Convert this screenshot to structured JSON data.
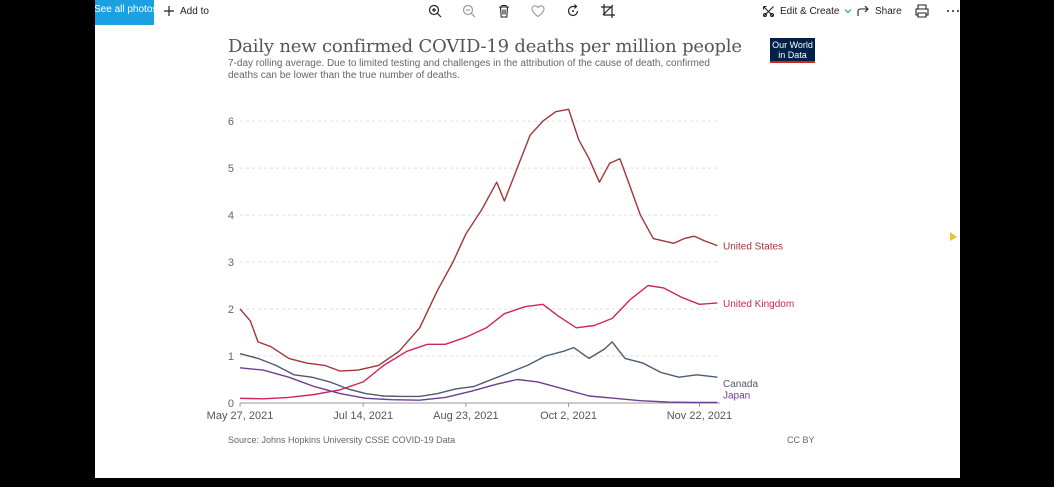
{
  "toolbar": {
    "see_all_label": "See all photos",
    "add_to_label": "Add to",
    "edit_create_label": "Edit & Create",
    "share_label": "Share",
    "icons": [
      "zoom-in-icon",
      "zoom-out-icon",
      "delete-icon",
      "heart-icon",
      "rotate-icon",
      "crop-icon",
      "print-icon",
      "more-icon"
    ]
  },
  "chart": {
    "title": "Daily new confirmed COVID-19 deaths per million people",
    "subtitle": "7-day rolling average. Due to limited testing and challenges in the attribution of the cause of death, confirmed deaths can be lower than the true number of deaths.",
    "logo_line1": "Our World",
    "logo_line2": "in Data",
    "source": "Source: Johns Hopkins University CSSE COVID-19 Data",
    "license": "CC BY"
  },
  "colors": {
    "accent": "#1ba1e2",
    "united_states": "#a2353a",
    "united_kingdom": "#d1245e",
    "canada": "#4c5a73",
    "japan": "#6d3e91"
  },
  "chart_data": {
    "type": "line",
    "x_axis": "date",
    "xlim": [
      "2021-05-27",
      "2021-11-30"
    ],
    "ylim": [
      0,
      6.3
    ],
    "yticks": [
      0,
      1,
      2,
      3,
      4,
      5,
      6
    ],
    "xticks": [
      "May 27, 2021",
      "Jul 14, 2021",
      "Aug 23, 2021",
      "Oct 2, 2021",
      "Nov 22, 2021"
    ],
    "xtick_dates": [
      "2021-05-27",
      "2021-07-14",
      "2021-08-23",
      "2021-10-02",
      "2021-11-22"
    ],
    "grid": "horizontal dashed",
    "legend": "inline labels at line ends",
    "series": [
      {
        "name": "United States",
        "color": "#a2353a",
        "points": [
          [
            "2021-05-27",
            2.0
          ],
          [
            "2021-05-31",
            1.75
          ],
          [
            "2021-06-03",
            1.3
          ],
          [
            "2021-06-08",
            1.2
          ],
          [
            "2021-06-15",
            0.95
          ],
          [
            "2021-06-22",
            0.85
          ],
          [
            "2021-06-29",
            0.8
          ],
          [
            "2021-07-05",
            0.68
          ],
          [
            "2021-07-12",
            0.7
          ],
          [
            "2021-07-20",
            0.8
          ],
          [
            "2021-07-28",
            1.1
          ],
          [
            "2021-08-05",
            1.6
          ],
          [
            "2021-08-12",
            2.4
          ],
          [
            "2021-08-18",
            3.0
          ],
          [
            "2021-08-23",
            3.6
          ],
          [
            "2021-08-29",
            4.1
          ],
          [
            "2021-09-04",
            4.7
          ],
          [
            "2021-09-07",
            4.3
          ],
          [
            "2021-09-12",
            5.0
          ],
          [
            "2021-09-17",
            5.7
          ],
          [
            "2021-09-22",
            6.0
          ],
          [
            "2021-09-27",
            6.2
          ],
          [
            "2021-10-02",
            6.25
          ],
          [
            "2021-10-06",
            5.6
          ],
          [
            "2021-10-10",
            5.2
          ],
          [
            "2021-10-14",
            4.7
          ],
          [
            "2021-10-18",
            5.1
          ],
          [
            "2021-10-22",
            5.2
          ],
          [
            "2021-10-26",
            4.6
          ],
          [
            "2021-10-30",
            4.0
          ],
          [
            "2021-11-04",
            3.5
          ],
          [
            "2021-11-08",
            3.45
          ],
          [
            "2021-11-12",
            3.4
          ],
          [
            "2021-11-16",
            3.5
          ],
          [
            "2021-11-20",
            3.55
          ],
          [
            "2021-11-24",
            3.45
          ],
          [
            "2021-11-29",
            3.35
          ]
        ]
      },
      {
        "name": "United Kingdom",
        "color": "#d1245e",
        "points": [
          [
            "2021-05-27",
            0.1
          ],
          [
            "2021-06-05",
            0.09
          ],
          [
            "2021-06-15",
            0.12
          ],
          [
            "2021-06-25",
            0.18
          ],
          [
            "2021-07-05",
            0.28
          ],
          [
            "2021-07-14",
            0.45
          ],
          [
            "2021-07-22",
            0.8
          ],
          [
            "2021-07-31",
            1.1
          ],
          [
            "2021-08-08",
            1.25
          ],
          [
            "2021-08-15",
            1.25
          ],
          [
            "2021-08-23",
            1.4
          ],
          [
            "2021-08-31",
            1.6
          ],
          [
            "2021-09-07",
            1.9
          ],
          [
            "2021-09-15",
            2.05
          ],
          [
            "2021-09-22",
            2.1
          ],
          [
            "2021-09-28",
            1.85
          ],
          [
            "2021-10-05",
            1.6
          ],
          [
            "2021-10-12",
            1.65
          ],
          [
            "2021-10-19",
            1.8
          ],
          [
            "2021-10-26",
            2.2
          ],
          [
            "2021-11-02",
            2.5
          ],
          [
            "2021-11-08",
            2.45
          ],
          [
            "2021-11-15",
            2.25
          ],
          [
            "2021-11-22",
            2.1
          ],
          [
            "2021-11-29",
            2.13
          ]
        ]
      },
      {
        "name": "Canada",
        "color": "#4c5a73",
        "points": [
          [
            "2021-05-27",
            1.05
          ],
          [
            "2021-06-03",
            0.95
          ],
          [
            "2021-06-10",
            0.8
          ],
          [
            "2021-06-17",
            0.6
          ],
          [
            "2021-06-24",
            0.55
          ],
          [
            "2021-07-01",
            0.45
          ],
          [
            "2021-07-08",
            0.3
          ],
          [
            "2021-07-15",
            0.2
          ],
          [
            "2021-07-22",
            0.15
          ],
          [
            "2021-07-29",
            0.14
          ],
          [
            "2021-08-05",
            0.14
          ],
          [
            "2021-08-12",
            0.2
          ],
          [
            "2021-08-19",
            0.3
          ],
          [
            "2021-08-26",
            0.35
          ],
          [
            "2021-09-02",
            0.5
          ],
          [
            "2021-09-09",
            0.65
          ],
          [
            "2021-09-16",
            0.8
          ],
          [
            "2021-09-23",
            1.0
          ],
          [
            "2021-09-30",
            1.1
          ],
          [
            "2021-10-04",
            1.18
          ],
          [
            "2021-10-10",
            0.95
          ],
          [
            "2021-10-16",
            1.15
          ],
          [
            "2021-10-19",
            1.3
          ],
          [
            "2021-10-24",
            0.95
          ],
          [
            "2021-10-31",
            0.85
          ],
          [
            "2021-11-07",
            0.65
          ],
          [
            "2021-11-14",
            0.55
          ],
          [
            "2021-11-21",
            0.6
          ],
          [
            "2021-11-29",
            0.55
          ]
        ]
      },
      {
        "name": "Japan",
        "color": "#6d3e91",
        "points": [
          [
            "2021-05-27",
            0.75
          ],
          [
            "2021-06-05",
            0.7
          ],
          [
            "2021-06-15",
            0.55
          ],
          [
            "2021-06-25",
            0.35
          ],
          [
            "2021-07-05",
            0.2
          ],
          [
            "2021-07-15",
            0.1
          ],
          [
            "2021-07-25",
            0.07
          ],
          [
            "2021-08-05",
            0.06
          ],
          [
            "2021-08-15",
            0.12
          ],
          [
            "2021-08-25",
            0.25
          ],
          [
            "2021-09-04",
            0.4
          ],
          [
            "2021-09-12",
            0.5
          ],
          [
            "2021-09-20",
            0.45
          ],
          [
            "2021-09-30",
            0.3
          ],
          [
            "2021-10-10",
            0.15
          ],
          [
            "2021-10-20",
            0.1
          ],
          [
            "2021-10-30",
            0.05
          ],
          [
            "2021-11-10",
            0.02
          ],
          [
            "2021-11-20",
            0.01
          ],
          [
            "2021-11-29",
            0.01
          ]
        ]
      }
    ]
  }
}
